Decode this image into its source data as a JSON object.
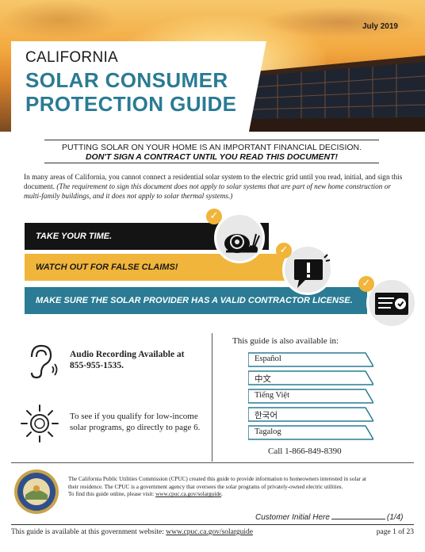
{
  "header": {
    "date": "July 2019",
    "state": "CALIFORNIA",
    "title_line1": "SOLAR CONSUMER",
    "title_line2": "PROTECTION GUIDE"
  },
  "subheading": {
    "line1": "PUTTING SOLAR ON YOUR HOME IS AN IMPORTANT FINANCIAL DECISION.",
    "line2": "DON'T SIGN A CONTRACT UNTIL YOU READ THIS DOCUMENT!"
  },
  "intro": {
    "text": "In many areas of California, you cannot connect a residential solar system to the electric grid until you read, initial, and sign this document.",
    "note": "(The requirement to sign this document does not apply to solar systems that are part of new home construction or multi-family buildings, and it does not apply to solar thermal systems.)"
  },
  "tips": [
    {
      "label": "TAKE YOUR TIME.",
      "icon": "snail-icon"
    },
    {
      "label": "WATCH OUT FOR FALSE CLAIMS!",
      "icon": "alert-speech-icon"
    },
    {
      "label": "MAKE SURE THE SOLAR PROVIDER HAS A VALID CONTRACTOR LICENSE.",
      "icon": "license-card-icon"
    }
  ],
  "audio": {
    "line1": "Audio Recording Available at",
    "line2": "855-955-1535."
  },
  "low_income": {
    "line1": "To see if you qualify for low-income",
    "line2": "solar programs, go directly to page 6."
  },
  "languages": {
    "heading": "This guide is also available in:",
    "items": [
      "Español",
      "中文",
      "Tiếng Việt",
      "한국어",
      "Tagalog"
    ],
    "phone": "Call 1-866-849-8390"
  },
  "cpuc": {
    "line1": "The California Public Utilities Commission (CPUC) created this guide to provide information to homeowners interested in solar at",
    "line2": "their residence. The CPUC is a government agency that oversees the solar programs of privately-owned electric utilities.",
    "line3_prefix": "To find this guide online, please visit: ",
    "line3_link": "www.cpuc.ca.gov/solarguide",
    "line3_suffix": "."
  },
  "initial": {
    "label": "Customer Initial Here",
    "page_fraction": "(1/4)"
  },
  "footer": {
    "left_prefix": "This guide is available at this government website: ",
    "left_link": "www.cpuc.ca.gov/solarguide",
    "right": "page 1 of 23"
  },
  "colors": {
    "teal": "#2a7b93",
    "gold": "#f0b53a",
    "black": "#141414"
  }
}
